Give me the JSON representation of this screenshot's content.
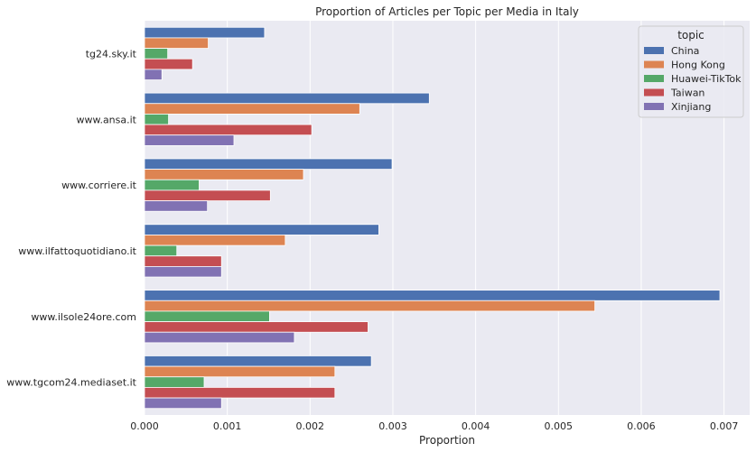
{
  "chart_data": {
    "type": "bar",
    "orientation": "horizontal",
    "title": "Proportion of Articles per Topic per Media in Italy",
    "xlabel": "Proportion",
    "ylabel": "",
    "xlim": [
      0,
      0.00731
    ],
    "x_ticks": [
      "0.000",
      "0.001",
      "0.002",
      "0.003",
      "0.004",
      "0.005",
      "0.006",
      "0.007"
    ],
    "x_tick_values": [
      0,
      0.001,
      0.002,
      0.003,
      0.004,
      0.005,
      0.006,
      0.007
    ],
    "grid": true,
    "legend_title": "topic",
    "legend_position": "top-right",
    "categories": [
      "tg24.sky.it",
      "www.ansa.it",
      "www.corriere.it",
      "www.ilfattoquotidiano.it",
      "www.ilsole24ore.com",
      "www.tgcom24.mediaset.it"
    ],
    "series": [
      {
        "name": "China",
        "color": "#4c72b0",
        "values": [
          0.00145,
          0.00344,
          0.00299,
          0.00283,
          0.00695,
          0.00274
        ]
      },
      {
        "name": "Hong Kong",
        "color": "#dd8452",
        "values": [
          0.00077,
          0.0026,
          0.00192,
          0.0017,
          0.00544,
          0.0023
        ]
      },
      {
        "name": "Huawei-TikTok",
        "color": "#55a868",
        "values": [
          0.00028,
          0.00029,
          0.00066,
          0.00039,
          0.00151,
          0.00072
        ]
      },
      {
        "name": "Taiwan",
        "color": "#c44e52",
        "values": [
          0.00058,
          0.00202,
          0.00152,
          0.00093,
          0.0027,
          0.0023
        ]
      },
      {
        "name": "Xinjiang",
        "color": "#8172b3",
        "values": [
          0.00021,
          0.00108,
          0.00076,
          0.00093,
          0.00181,
          0.00093
        ]
      }
    ]
  },
  "colors": {
    "plot_background": "#eaeaf2",
    "grid": "#ffffff",
    "legend_background": "#eaeaf2",
    "legend_border": "#cccccc"
  }
}
